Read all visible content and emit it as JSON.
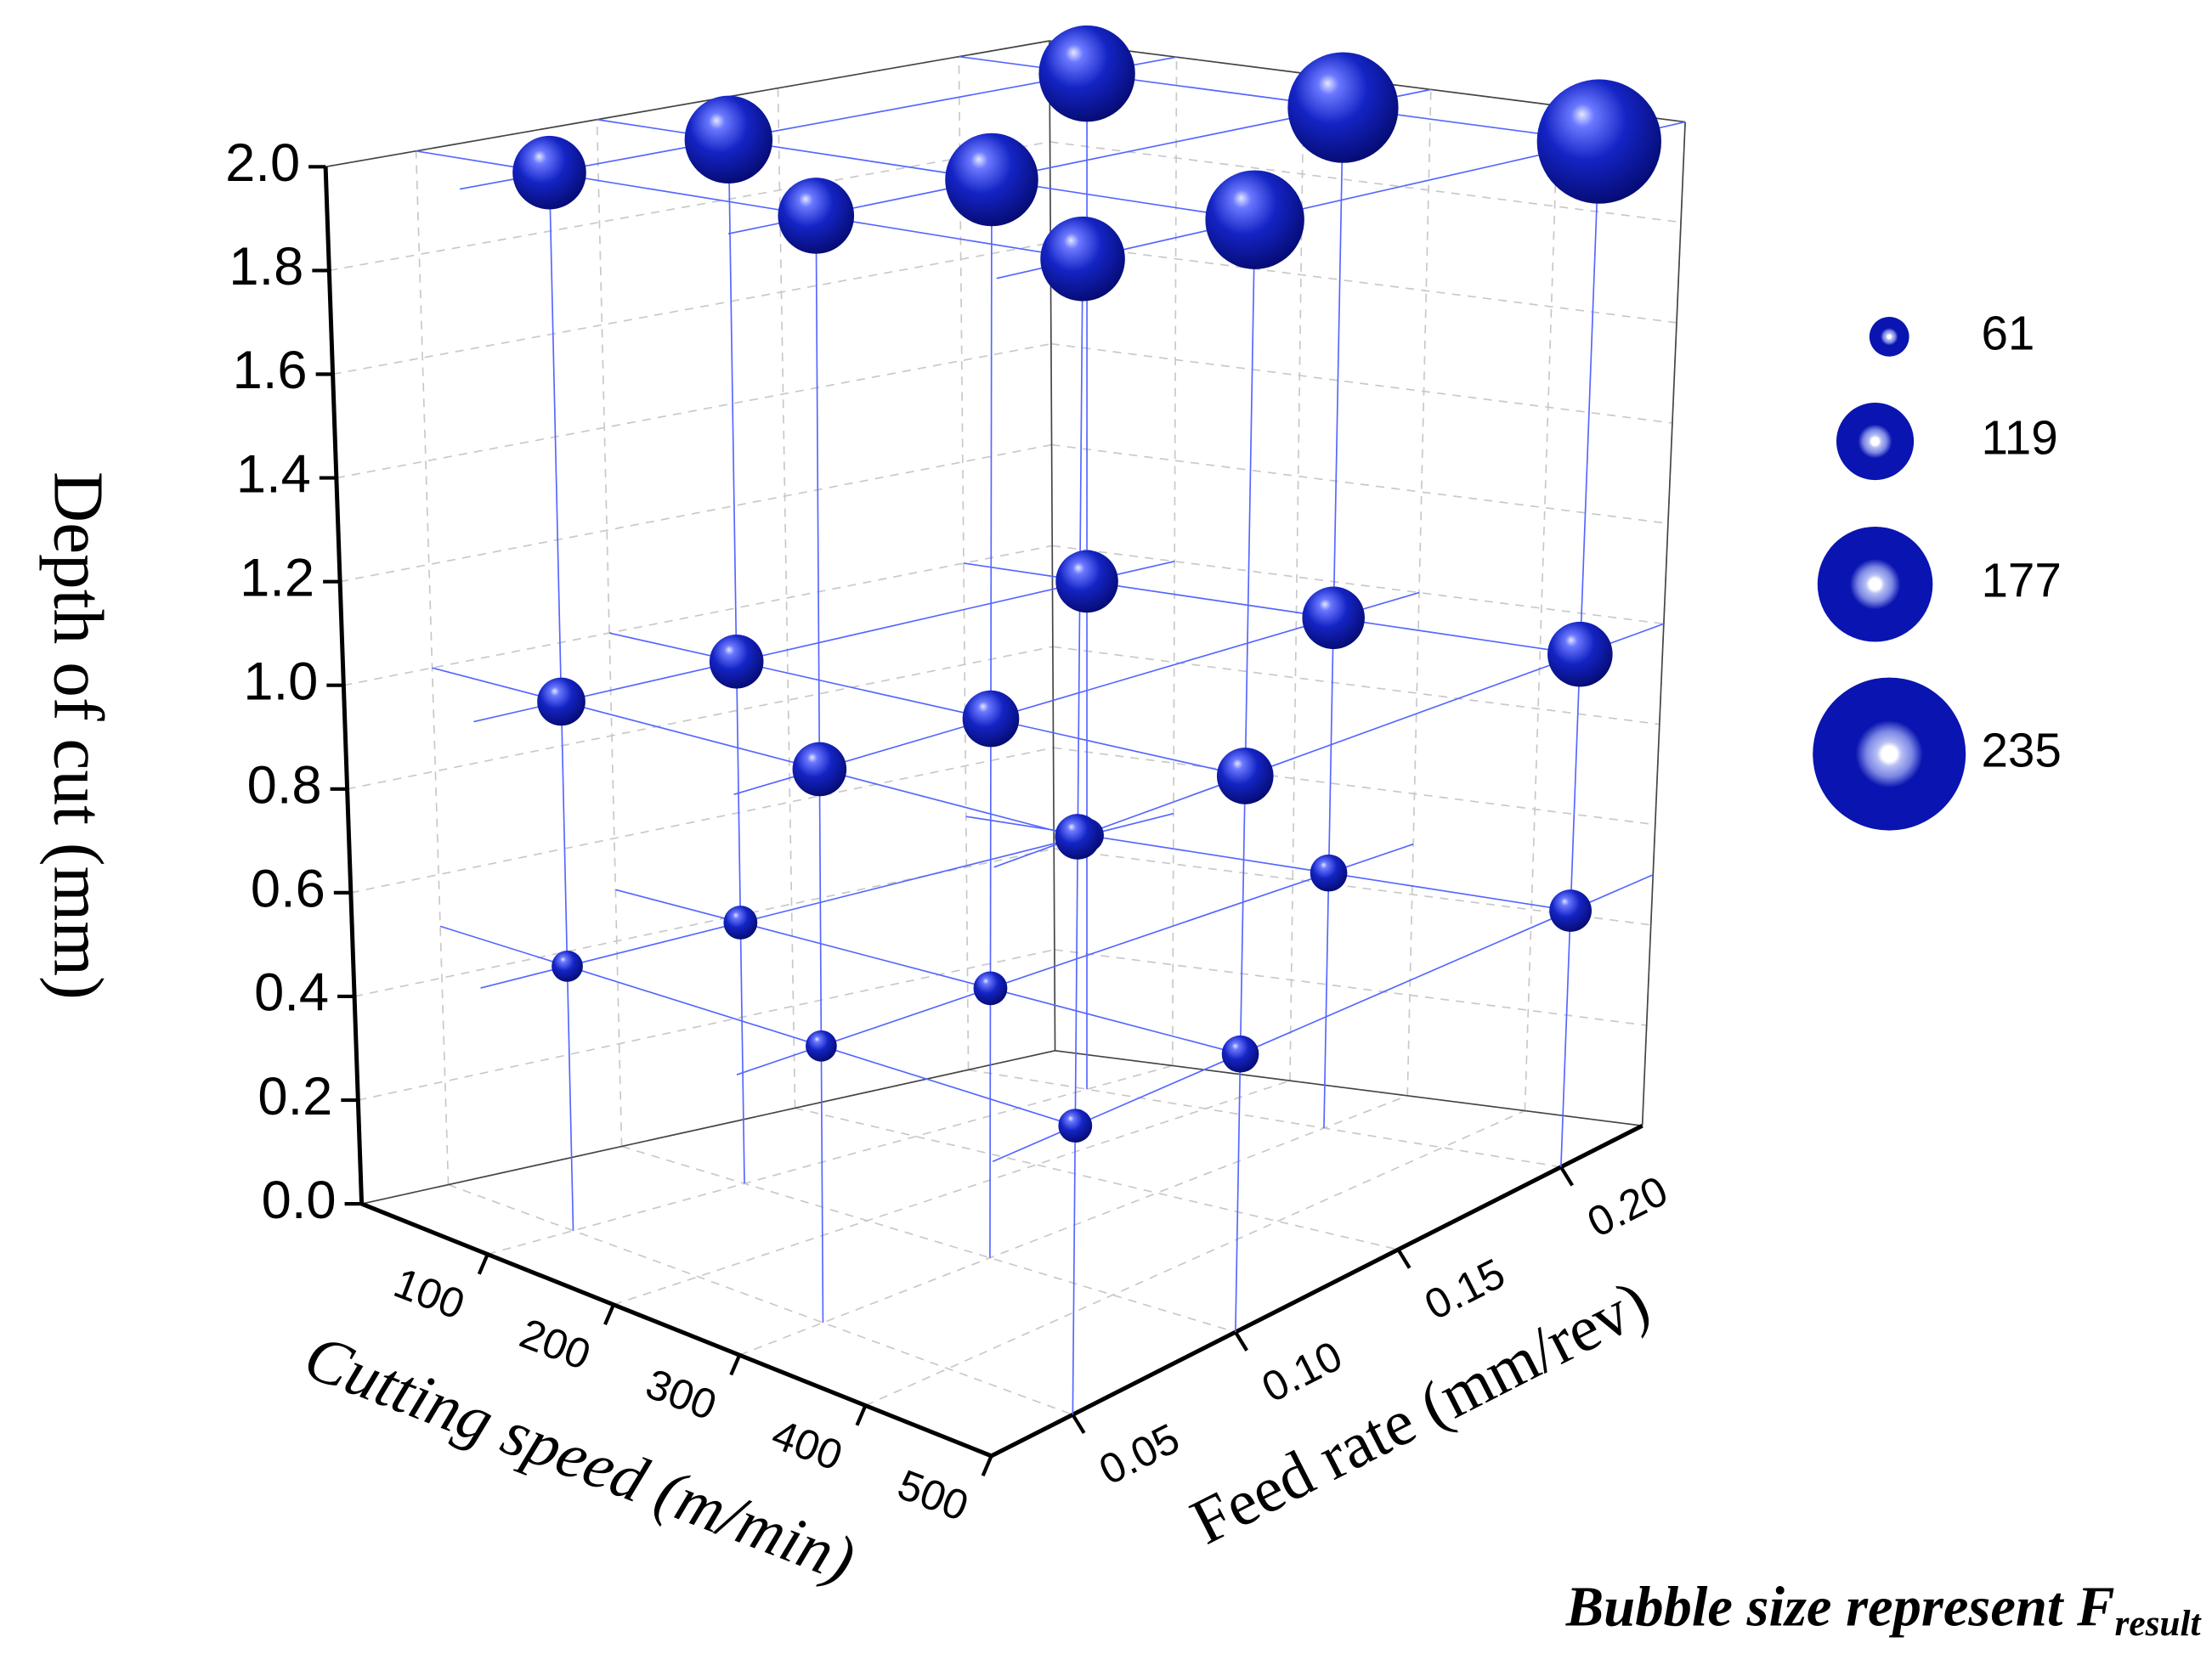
{
  "chart_data": {
    "type": "bubble3d",
    "xlabel": "Cutting speed (m/min)",
    "ylabel": "Feed rate (mm/rev)",
    "zlabel": "Depth of cut (mm)",
    "annotation": {
      "text": "Bubble size represent F",
      "subscript": "result"
    },
    "color": "#0a14b0",
    "x": [
      100,
      100,
      100,
      300,
      300,
      300,
      500,
      500,
      500,
      100,
      100,
      100,
      300,
      300,
      300,
      500,
      500,
      500,
      100,
      100,
      100,
      300,
      300,
      300,
      500,
      500,
      500
    ],
    "y": [
      0.05,
      0.1,
      0.2,
      0.05,
      0.1,
      0.2,
      0.05,
      0.1,
      0.2,
      0.05,
      0.1,
      0.2,
      0.05,
      0.1,
      0.2,
      0.05,
      0.1,
      0.2,
      0.05,
      0.1,
      0.2,
      0.05,
      0.1,
      0.2,
      0.05,
      0.1,
      0.2
    ],
    "z": [
      2,
      2,
      2,
      2,
      2,
      2,
      2,
      2,
      2,
      1,
      1,
      1,
      1,
      1,
      1,
      1,
      1,
      1,
      0.5,
      0.5,
      0.5,
      0.5,
      0.5,
      0.5,
      0.5,
      0.5,
      0.5
    ],
    "sizes": [
      113,
      135,
      148,
      117,
      143,
      170,
      130,
      152,
      191,
      74,
      83,
      96,
      83,
      87,
      96,
      70,
      87,
      100,
      48,
      52,
      52,
      48,
      52,
      57,
      52,
      57,
      65
    ],
    "size_legend": [
      61,
      119,
      177,
      235
    ],
    "xlim": [
      0,
      500
    ],
    "ylim": [
      0.025,
      0.225
    ],
    "zlim": [
      0,
      2
    ],
    "xticks": [
      100,
      200,
      300,
      400,
      500
    ],
    "yticks": [
      0.05,
      {
        "value": 0.1,
        "label": "0.10"
      },
      0.15,
      {
        "value": 0.2,
        "label": "0.20"
      }
    ],
    "zticks": [
      {
        "value": 0,
        "label": "0.0"
      },
      0.2,
      0.4,
      0.6,
      0.8,
      {
        "value": 1,
        "label": "1.0"
      },
      1.2,
      1.4,
      1.6,
      1.8,
      {
        "value": 2,
        "label": "2.0"
      }
    ],
    "grid": true
  }
}
